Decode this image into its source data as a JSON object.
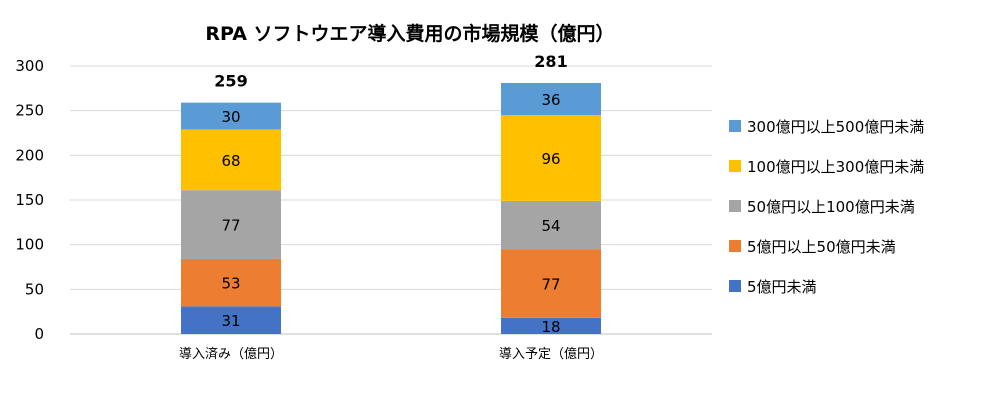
{
  "chart_data": {
    "type": "bar",
    "stacked": true,
    "title": "RPA ソフトウエア導入費用の市場規模（億円）",
    "categories": [
      "導入済み（億円）",
      "導入予定（億円）"
    ],
    "series": [
      {
        "name": "5億円未満",
        "values": [
          31,
          18
        ],
        "color": "#4472C4"
      },
      {
        "name": "5億円以上50億円未満",
        "values": [
          53,
          77
        ],
        "color": "#ED7D31"
      },
      {
        "name": "50億円以上100億円未満",
        "values": [
          77,
          54
        ],
        "color": "#A5A5A5"
      },
      {
        "name": "100億円以上300億円未満",
        "values": [
          68,
          96
        ],
        "color": "#FFC000"
      },
      {
        "name": "300億円以上500億円未満",
        "values": [
          30,
          36
        ],
        "color": "#5B9BD5"
      }
    ],
    "totals": [
      259,
      281
    ],
    "ylim": [
      0,
      300
    ],
    "yticks": [
      0,
      50,
      100,
      150,
      200,
      250,
      300
    ],
    "grid": true,
    "legend_position": "right"
  }
}
